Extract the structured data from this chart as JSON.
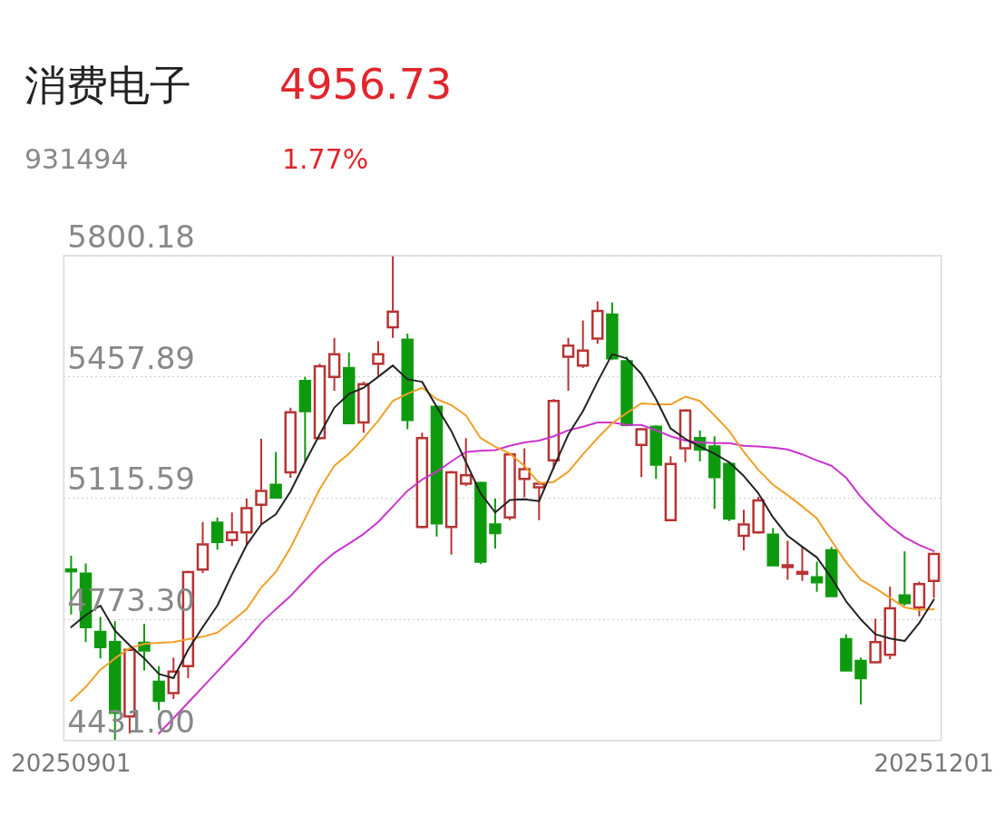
{
  "chart_data": {
    "type": "candlestick",
    "title": "消费电子",
    "subtitle": "931494",
    "annotations": [
      "4956.73",
      "1.77%"
    ],
    "categories": [
      "20250901",
      null,
      null,
      null,
      null,
      null,
      null,
      null,
      null,
      null,
      null,
      null,
      null,
      null,
      null,
      null,
      null,
      null,
      null,
      null,
      null,
      null,
      null,
      null,
      null,
      null,
      null,
      null,
      null,
      null,
      null,
      null,
      null,
      null,
      null,
      null,
      null,
      null,
      null,
      null,
      null,
      null,
      null,
      null,
      null,
      null,
      null,
      null,
      null,
      null,
      null,
      null,
      null,
      null,
      null,
      null,
      null,
      null,
      null,
      "20251201"
    ],
    "ohlc": [
      [
        4914,
        4953,
        4787,
        4909
      ],
      [
        4902,
        4931,
        4709,
        4751
      ],
      [
        4738,
        4780,
        4663,
        4695
      ],
      [
        4709,
        4768,
        4433,
        4509
      ],
      [
        4499,
        4695,
        4451,
        4687
      ],
      [
        4707,
        4760,
        4629,
        4685
      ],
      [
        4597,
        4641,
        4516,
        4543
      ],
      [
        4565,
        4665,
        4548,
        4626
      ],
      [
        4641,
        4910,
        4607,
        4907
      ],
      [
        4914,
        5048,
        4904,
        4985
      ],
      [
        5046,
        5061,
        4970,
        4992
      ],
      [
        4997,
        5075,
        4980,
        5019
      ],
      [
        5019,
        5114,
        4985,
        5087
      ],
      [
        5097,
        5283,
        5041,
        5136
      ],
      [
        5153,
        5246,
        5117,
        5117
      ],
      [
        5188,
        5371,
        5173,
        5358
      ],
      [
        5446,
        5458,
        5219,
        5361
      ],
      [
        5285,
        5495,
        5280,
        5488
      ],
      [
        5458,
        5568,
        5419,
        5522
      ],
      [
        5483,
        5527,
        5327,
        5327
      ],
      [
        5329,
        5444,
        5300,
        5437
      ],
      [
        5495,
        5559,
        5461,
        5522
      ],
      [
        5598,
        5800,
        5568,
        5642
      ],
      [
        5563,
        5580,
        5310,
        5336
      ],
      [
        5034,
        5300,
        5030,
        5285
      ],
      [
        5373,
        5378,
        5007,
        5044
      ],
      [
        5034,
        5192,
        4956,
        5188
      ],
      [
        5156,
        5285,
        5149,
        5180
      ],
      [
        5158,
        5162,
        4929,
        4936
      ],
      [
        5041,
        5114,
        4973,
        5017
      ],
      [
        5061,
        5244,
        5053,
        5239
      ],
      [
        5170,
        5256,
        5117,
        5197
      ],
      [
        5146,
        5163,
        5053,
        5156
      ],
      [
        5222,
        5395,
        5197,
        5390
      ],
      [
        5515,
        5568,
        5419,
        5546
      ],
      [
        5490,
        5617,
        5483,
        5532
      ],
      [
        5566,
        5671,
        5551,
        5644
      ],
      [
        5634,
        5668,
        5505,
        5510
      ],
      [
        5502,
        5515,
        5318,
        5322
      ],
      [
        5266,
        5312,
        5175,
        5310
      ],
      [
        5317,
        5322,
        5170,
        5210
      ],
      [
        5053,
        5234,
        5050,
        5212
      ],
      [
        5256,
        5366,
        5217,
        5363
      ],
      [
        5285,
        5307,
        5219,
        5253
      ],
      [
        5261,
        5290,
        5085,
        5175
      ],
      [
        5212,
        5216,
        5051,
        5058
      ],
      [
        5009,
        5083,
        4968,
        5041
      ],
      [
        5019,
        5119,
        5015,
        5109
      ],
      [
        5012,
        5031,
        4926,
        4926
      ],
      [
        4922,
        4995,
        4885,
        4926
      ],
      [
        4902,
        4978,
        4882,
        4907
      ],
      [
        4892,
        4936,
        4851,
        4878
      ],
      [
        4968,
        4978,
        4836,
        4839
      ],
      [
        4717,
        4731,
        4629,
        4629
      ],
      [
        4656,
        4665,
        4533,
        4607
      ],
      [
        4652,
        4775,
        4652,
        4709
      ],
      [
        4673,
        4865,
        4660,
        4804
      ],
      [
        4841,
        4965,
        4812,
        4819
      ],
      [
        4807,
        4880,
        4782,
        4873
      ],
      [
        4882,
        4961,
        4834,
        4958
      ]
    ],
    "colors": [
      "#0e9a0e",
      "#0e9a0e",
      "#0e9a0e",
      "#0e9a0e",
      "#b83232",
      "#0e9a0e",
      "#0e9a0e",
      "#b83232",
      "#b83232",
      "#b83232",
      "#0e9a0e",
      "#b83232",
      "#b83232",
      "#b83232",
      "#0e9a0e",
      "#b83232",
      "#0e9a0e",
      "#b83232",
      "#b83232",
      "#0e9a0e",
      "#b83232",
      "#b83232",
      "#b83232",
      "#0e9a0e",
      "#b83232",
      "#0e9a0e",
      "#b83232",
      "#b83232",
      "#0e9a0e",
      "#0e9a0e",
      "#b83232",
      "#b83232",
      "#b83232",
      "#b83232",
      "#b83232",
      "#b83232",
      "#b83232",
      "#0e9a0e",
      "#0e9a0e",
      "#b83232",
      "#0e9a0e",
      "#b83232",
      "#b83232",
      "#0e9a0e",
      "#0e9a0e",
      "#0e9a0e",
      "#b83232",
      "#b83232",
      "#0e9a0e",
      "#b83232",
      "#b83232",
      "#0e9a0e",
      "#0e9a0e",
      "#0e9a0e",
      "#0e9a0e",
      "#b83232",
      "#b83232",
      "#0e9a0e",
      "#b83232",
      "#b83232"
    ],
    "series": [
      {
        "type": "line",
        "color": "#222222",
        "values": [
          4751,
          4785,
          4812,
          4741,
          4700,
          4663,
          4619,
          4607,
          4687,
          4751,
          4812,
          4900,
          4983,
          5041,
          5070,
          5134,
          5217,
          5295,
          5371,
          5410,
          5427,
          5458,
          5490,
          5451,
          5444,
          5373,
          5305,
          5217,
          5129,
          5075,
          5110,
          5112,
          5107,
          5202,
          5295,
          5361,
          5444,
          5522,
          5510,
          5466,
          5395,
          5312,
          5283,
          5261,
          5241,
          5217,
          5178,
          5129,
          5061,
          5009,
          4978,
          4948,
          4890,
          4824,
          4773,
          4731,
          4719,
          4712,
          4763,
          4829
        ]
      },
      {
        "type": "line",
        "color": "#f0a028",
        "values": [
          4543,
          4582,
          4631,
          4663,
          4692,
          4704,
          4707,
          4709,
          4717,
          4724,
          4736,
          4768,
          4802,
          4863,
          4907,
          4975,
          5058,
          5141,
          5207,
          5241,
          5285,
          5334,
          5390,
          5410,
          5427,
          5395,
          5378,
          5349,
          5285,
          5261,
          5241,
          5207,
          5158,
          5161,
          5190,
          5239,
          5285,
          5327,
          5356,
          5383,
          5380,
          5380,
          5402,
          5390,
          5349,
          5305,
          5246,
          5195,
          5153,
          5124,
          5092,
          5058,
          4995,
          4934,
          4885,
          4861,
          4834,
          4807,
          4800,
          4802
        ]
      },
      {
        "type": "line",
        "color": "#cc33cc",
        "values": [
          null,
          null,
          null,
          null,
          null,
          null,
          4451,
          4494,
          4538,
          4582,
          4626,
          4670,
          4714,
          4763,
          4802,
          4839,
          4883,
          4926,
          4961,
          4987,
          5014,
          5048,
          5092,
          5136,
          5168,
          5190,
          5219,
          5246,
          5249,
          5251,
          5263,
          5273,
          5278,
          5290,
          5307,
          5317,
          5329,
          5329,
          5322,
          5322,
          5307,
          5290,
          5278,
          5273,
          5271,
          5271,
          5263,
          5261,
          5258,
          5253,
          5239,
          5222,
          5207,
          5173,
          5119,
          5075,
          5036,
          5005,
          4983,
          4966
        ]
      }
    ],
    "ylim": [
      4431,
      5800.18
    ],
    "yticks": [
      {
        "value": 4431,
        "label": "4431.00"
      },
      {
        "value": 4773.3,
        "label": "4773.30"
      },
      5115.59,
      5457.89,
      5800.18
    ],
    "grid": "y",
    "marker": "none"
  }
}
